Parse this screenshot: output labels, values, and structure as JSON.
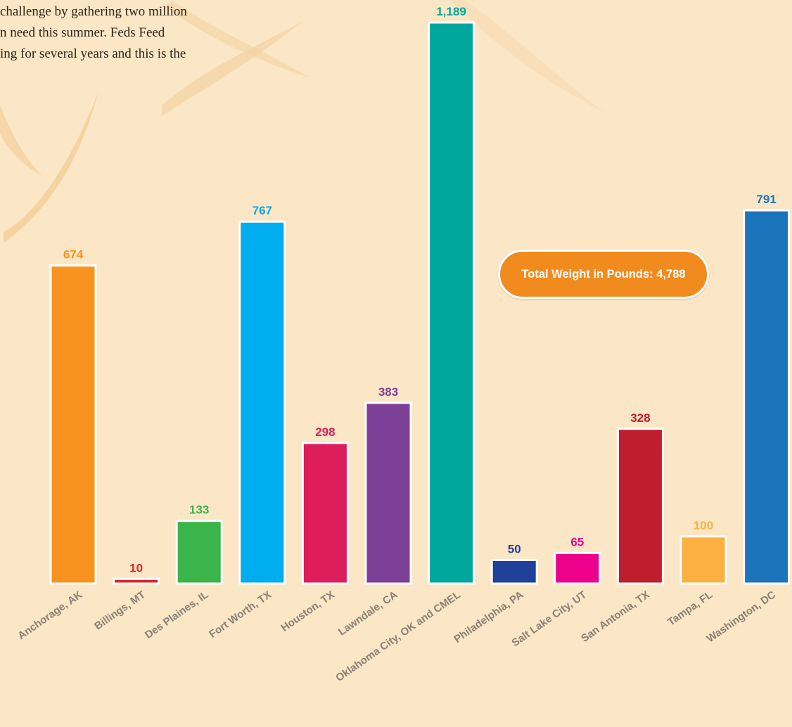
{
  "intro_text": [
    "challenge by gathering two million",
    "n need this summer. Feds Feed",
    "ing for several years and this is the"
  ],
  "total_label": "Total Weight in Pounds: 4,788",
  "colors": {
    "background": "#fbe6c6",
    "bar_outline": "#ffffff",
    "axis_label": "#8b8076",
    "pill": "#f28b1e"
  },
  "chart_data": {
    "type": "bar",
    "title": "",
    "xlabel": "",
    "ylabel": "",
    "ylim": [
      0,
      1189
    ],
    "grid": false,
    "categories": [
      "Anchorage, AK",
      "Billings, MT",
      "Des Plaines, IL",
      "Fort Worth, TX",
      "Houston, TX",
      "Lawndale, CA",
      "Oklahoma City, OK and CMEL",
      "Philadelphia, PA",
      "Salt Lake City, UT",
      "San Antonia, TX",
      "Tampa, FL",
      "Washington, DC"
    ],
    "values": [
      674,
      10,
      133,
      767,
      298,
      383,
      1189,
      50,
      65,
      328,
      100,
      791
    ],
    "value_labels": [
      "674",
      "10",
      "133",
      "767",
      "298",
      "383",
      "1,189",
      "50",
      "65",
      "328",
      "100",
      "791"
    ],
    "colors": [
      "#f7931e",
      "#e0252b",
      "#3bb54a",
      "#00adef",
      "#dc1c5b",
      "#7d3f98",
      "#00a79d",
      "#21409a",
      "#ec008c",
      "#be1e2d",
      "#fbb040",
      "#1c75bc"
    ],
    "label_colors": [
      "#f7931e",
      "#e0252b",
      "#3bb54a",
      "#00adef",
      "#dc1c5b",
      "#7d3f98",
      "#00a79d",
      "#21409a",
      "#ec008c",
      "#be1e2d",
      "#fbb040",
      "#1c75bc"
    ]
  }
}
